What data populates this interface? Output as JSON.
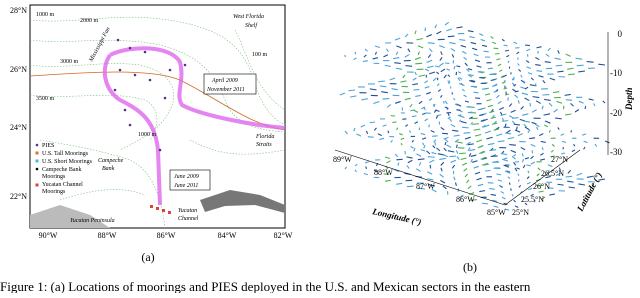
{
  "panel_a": {
    "y_ticks": [
      "28°N",
      "26°N",
      "24°N",
      "22°N"
    ],
    "x_ticks": [
      "90°W",
      "88°W",
      "86°W",
      "84°W",
      "82°W"
    ],
    "annotations": {
      "contour_1000_top": "1000 m",
      "contour_2000": "2000 m",
      "contour_3000": "3000 m",
      "contour_3500": "3500 m",
      "contour_100": "100 m",
      "contour_1000_mid": "1000 m",
      "west_florida_shelf": [
        "West Florida",
        "Shelf"
      ],
      "mississippi_fan": "Mississippi Fan",
      "florida_straits": [
        "Florida",
        "Straits"
      ],
      "campeche_bank": [
        "Campeche",
        "Bank"
      ],
      "yucatan_peninsula": "Yucatan Peninsula",
      "yucatan_channel": [
        "Yucatan",
        "Channel"
      ],
      "us_period": [
        "April 2009",
        "November 2011"
      ],
      "mexican_period": [
        "June 2009",
        "June 2011"
      ]
    },
    "legend": [
      "PIES",
      "U.S. Tall Moorings",
      "U.S. Short Moorings",
      "Campeche Bank",
      "Moorings",
      "Yucatan Channel",
      "Moorings"
    ],
    "label": "(a)"
  },
  "panel_b": {
    "depth_label": "Depth",
    "depth_ticks": [
      "0",
      "-10",
      "-20",
      "-30"
    ],
    "latitude_label": "Latitude (°)",
    "latitude_ticks": [
      "25°N",
      "25.5°N",
      "26°N",
      "26.5°N",
      "27°N"
    ],
    "longitude_label": "Longitude (°)",
    "longitude_ticks": [
      "89°W",
      "88°W",
      "87°W",
      "86°W",
      "85°W"
    ],
    "label": "(b)"
  },
  "caption": "Figure 1: (a) Locations of moorings and PIES deployed in the U.S. and Mexican sectors in the eastern"
}
